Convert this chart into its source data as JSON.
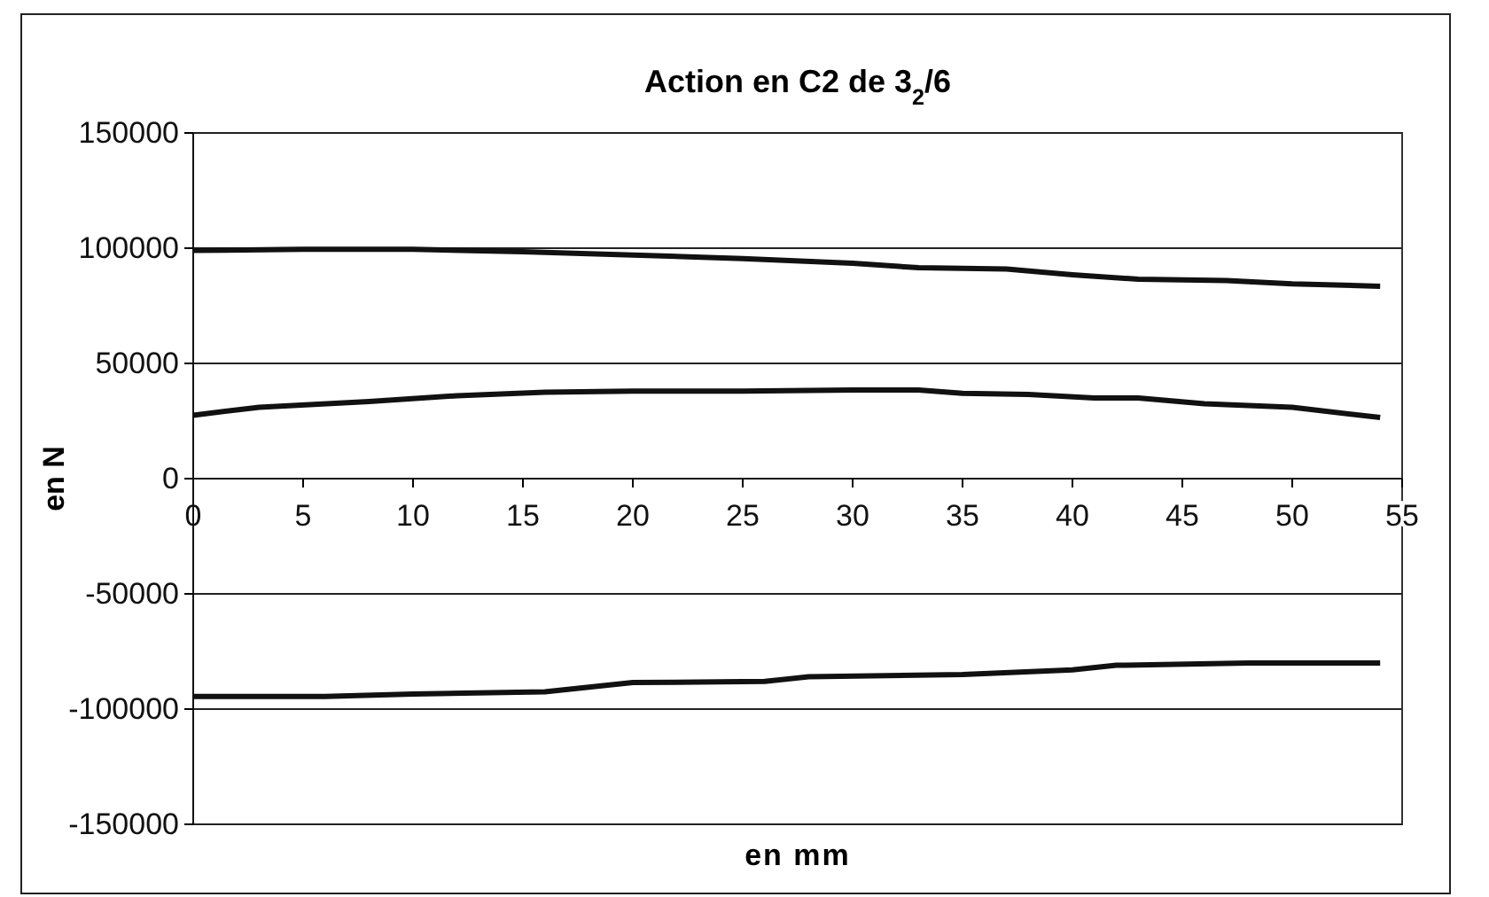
{
  "chart_data": {
    "type": "line",
    "title": "Action en C2 de 3$_{2}$/6",
    "xlabel": "en mm",
    "ylabel": "en N",
    "xlim": [
      0,
      55
    ],
    "xticks": [
      0,
      5,
      10,
      15,
      20,
      25,
      30,
      35,
      40,
      45,
      50,
      55
    ],
    "ylim": [
      -150000,
      150000
    ],
    "yticks": [
      -150000,
      -100000,
      -50000,
      0,
      50000,
      100000,
      150000
    ],
    "grid": "y",
    "marker": "none",
    "line_style": "solid",
    "series": [
      {
        "color": "#111111",
        "x": [
          0,
          5,
          10,
          15,
          20,
          25,
          30,
          33,
          37,
          40,
          43,
          47,
          50,
          54
        ],
        "values": [
          99000,
          99500,
          99500,
          98500,
          97000,
          95500,
          93500,
          91500,
          91000,
          88500,
          86500,
          86000,
          84500,
          83500
        ]
      },
      {
        "color": "#111111",
        "x": [
          0,
          3,
          8,
          12,
          16,
          20,
          25,
          30,
          33,
          35,
          38,
          41,
          43,
          46,
          50,
          54
        ],
        "values": [
          27500,
          31000,
          33500,
          36000,
          37500,
          38000,
          38000,
          38500,
          38500,
          37000,
          36500,
          35000,
          35000,
          32500,
          31000,
          26500
        ]
      },
      {
        "color": "#111111",
        "x": [
          0,
          6,
          10,
          16,
          20,
          26,
          28,
          35,
          40,
          42,
          48,
          54
        ],
        "values": [
          -94500,
          -94500,
          -93500,
          -92500,
          -88500,
          -88000,
          -86000,
          -85000,
          -83000,
          -81000,
          -80000,
          -80000
        ]
      }
    ]
  }
}
